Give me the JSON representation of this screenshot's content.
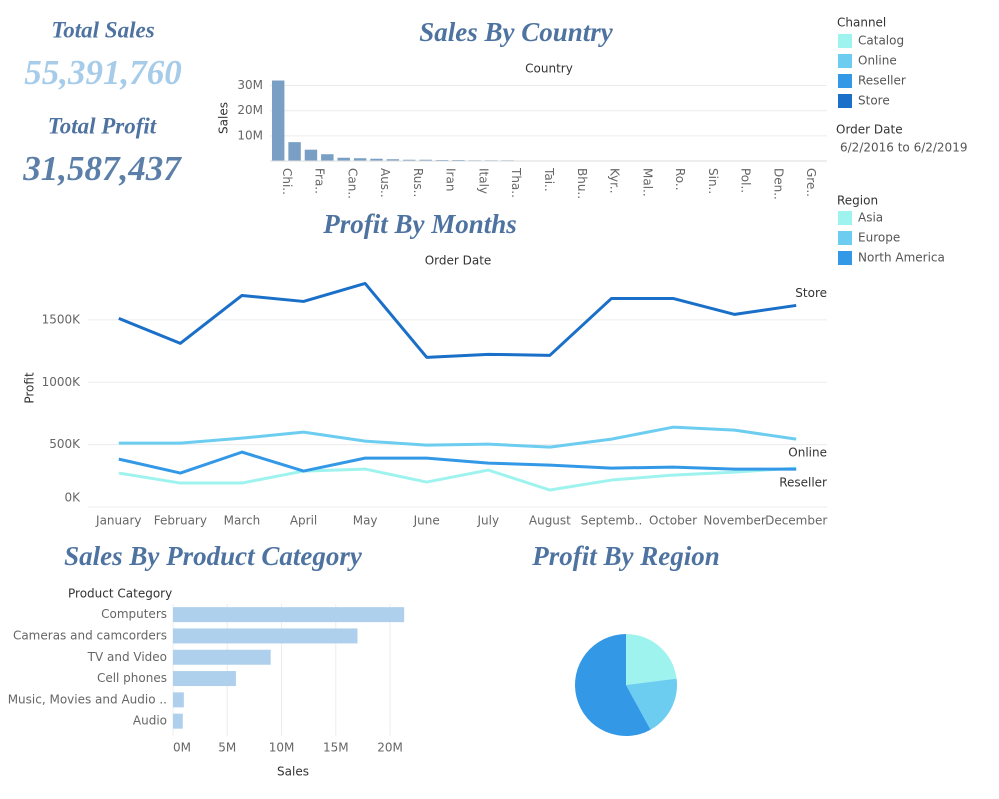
{
  "kpis": [
    {
      "label": "Total Sales",
      "value": "55,391,760"
    },
    {
      "label": "Total Profit",
      "value": "31,587,437"
    }
  ],
  "filter": {
    "title": "Order Date",
    "range": "6/2/2016 to 6/2/2019"
  },
  "chart_data": [
    {
      "type": "bar",
      "title": "Sales By Country",
      "header": "Country",
      "y_label": "Sales",
      "color": "#7a9fc4",
      "categories": [
        "Chi..",
        null,
        "Fra..",
        null,
        "Can..",
        null,
        "Aus..",
        null,
        "Rus..",
        null,
        "Iran",
        null,
        "Italy",
        null,
        "Tha..",
        null,
        "Tai..",
        null,
        "Bhu..",
        null,
        "Kyr..",
        null,
        "Mal..",
        null,
        "Ro..",
        null,
        "Sin..",
        null,
        "Pol..",
        null,
        "Den..",
        null,
        "Gre..",
        null
      ],
      "values": [
        32000000,
        7500000,
        4500000,
        2700000,
        1300000,
        1100000,
        900000,
        700000,
        500000,
        500000,
        400000,
        400000,
        300000,
        300000,
        300000,
        200000,
        200000,
        100000,
        80000,
        70000,
        60000,
        50000,
        50000,
        40000,
        40000,
        30000,
        30000,
        30000,
        20000,
        20000,
        20000,
        10000,
        10000,
        10000
      ],
      "ylim": [
        0,
        33000000
      ],
      "yticks": [
        {
          "value": 10000000,
          "label": "10M"
        },
        {
          "value": 20000000,
          "label": "20M"
        },
        {
          "value": 30000000,
          "label": "30M"
        }
      ],
      "grid": true
    },
    {
      "type": "line",
      "title": "Profit By Months",
      "header": "Order Date",
      "y_label": "Profit",
      "legend_title": "Channel",
      "categories": [
        "January",
        "February",
        "March",
        "April",
        "May",
        "June",
        "July",
        "August",
        "Septemb..",
        "October",
        "November",
        "December"
      ],
      "series": [
        {
          "name": "Catalog",
          "color": "#9ef3ee",
          "end_label": false,
          "values": [
            272000,
            192000,
            192000,
            288000,
            304000,
            200000,
            296000,
            136000,
            216000,
            256000,
            280000,
            312000
          ]
        },
        {
          "name": "Online",
          "color": "#6ccdf0",
          "end_label": true,
          "values": [
            512000,
            512000,
            552000,
            600000,
            528000,
            496000,
            504000,
            480000,
            544000,
            640000,
            616000,
            544000
          ]
        },
        {
          "name": "Reseller",
          "color": "#3399e6",
          "end_label": true,
          "values": [
            384000,
            272000,
            440000,
            288000,
            392000,
            392000,
            352000,
            336000,
            312000,
            320000,
            304000,
            304000
          ]
        },
        {
          "name": "Store",
          "color": "#1a6fc8",
          "end_label": true,
          "values": [
            1512000,
            1312000,
            1696000,
            1648000,
            1792000,
            1200000,
            1224000,
            1216000,
            1672000,
            1672000,
            1544000,
            1616000
          ]
        }
      ],
      "ylim": [
        0,
        1900000
      ],
      "yticks": [
        {
          "value": 0,
          "label": "0K"
        },
        {
          "value": 500000,
          "label": "500K"
        },
        {
          "value": 1000000,
          "label": "1000K"
        },
        {
          "value": 1500000,
          "label": "1500K"
        }
      ],
      "grid": true
    },
    {
      "type": "hbar",
      "title": "Sales By Product Category",
      "header": "Product Category",
      "x_label": "Sales",
      "color": "#aed0ec",
      "categories": [
        "Computers",
        "Cameras and camcorders",
        "TV and Video",
        "Cell phones",
        "Music, Movies and Audio ..",
        "Audio"
      ],
      "values": [
        21300000,
        17000000,
        9000000,
        5800000,
        1000000,
        900000
      ],
      "xlim": [
        0,
        22300000
      ],
      "xticks": [
        {
          "value": 0,
          "label": "0M"
        },
        {
          "value": 5000000,
          "label": "5M"
        },
        {
          "value": 10000000,
          "label": "10M"
        },
        {
          "value": 15000000,
          "label": "15M"
        },
        {
          "value": 20000000,
          "label": "20M"
        }
      ],
      "grid": true
    },
    {
      "type": "pie",
      "title": "Profit By Region",
      "legend_title": "Region",
      "categories": [
        "Asia",
        "Europe",
        "North America"
      ],
      "values": [
        23,
        19,
        58
      ],
      "colors": [
        "#9ef3ee",
        "#6ccdf0",
        "#3399e6"
      ]
    }
  ]
}
